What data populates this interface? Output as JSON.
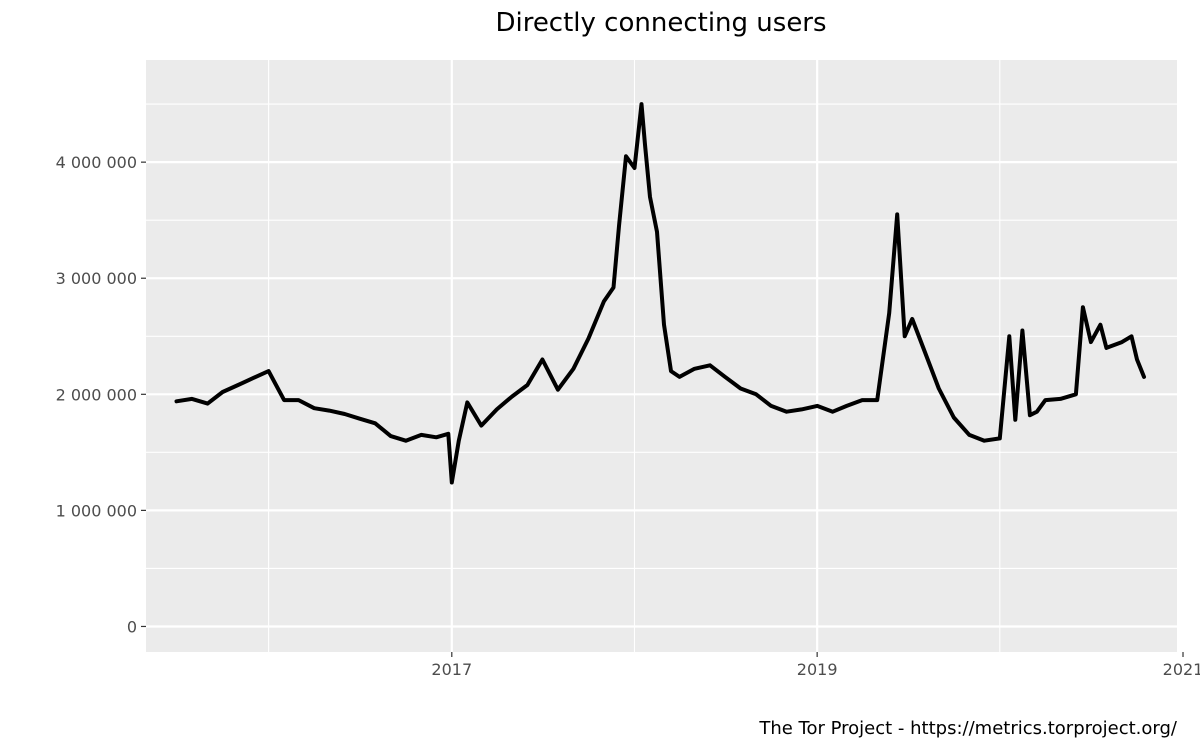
{
  "chart_data": {
    "type": "line",
    "title": "Directly connecting users",
    "xlabel": "",
    "ylabel": "",
    "caption": "The Tor Project - https://metrics.torproject.org/",
    "x_tick_labels": [
      "2017",
      "2019",
      "2021"
    ],
    "y_tick_labels": [
      "0",
      "1 000 000",
      "2 000 000",
      "3 000 000",
      "4 000 000"
    ],
    "y_ticks": [
      0,
      1000000,
      2000000,
      3000000,
      4000000
    ],
    "x_ticks": [
      "2017-01-01",
      "2019-01-01",
      "2021-01-01"
    ],
    "x_minor_ticks": [
      "2016-01-01",
      "2018-01-01",
      "2020-01-01"
    ],
    "xlim": [
      "2015-05-01",
      "2020-12-20"
    ],
    "ylim": [
      -220000,
      4880000
    ],
    "grid": true,
    "line_color": "#000000",
    "panel_color": "#ebebeb",
    "grid_color": "#ffffff",
    "series": [
      {
        "x": [
          "2015-07-01",
          "2015-08-01",
          "2015-09-01",
          "2015-10-01",
          "2015-11-01",
          "2015-12-01",
          "2016-01-01",
          "2016-02-01",
          "2016-03-01",
          "2016-04-01",
          "2016-05-01",
          "2016-06-01",
          "2016-07-01",
          "2016-08-01",
          "2016-09-01",
          "2016-10-01",
          "2016-11-01",
          "2016-12-01",
          "2016-12-25",
          "2017-01-01",
          "2017-01-15",
          "2017-02-01",
          "2017-03-01",
          "2017-04-01",
          "2017-05-01",
          "2017-06-01",
          "2017-07-01",
          "2017-08-01",
          "2017-09-01",
          "2017-10-01",
          "2017-11-01",
          "2017-11-20",
          "2017-12-01",
          "2017-12-15",
          "2018-01-01",
          "2018-01-15",
          "2018-01-22",
          "2018-02-01",
          "2018-02-15",
          "2018-03-01",
          "2018-03-15",
          "2018-04-01",
          "2018-05-01",
          "2018-06-01",
          "2018-07-01",
          "2018-08-01",
          "2018-09-01",
          "2018-10-01",
          "2018-11-01",
          "2018-12-01",
          "2019-01-01",
          "2019-02-01",
          "2019-03-01",
          "2019-04-01",
          "2019-05-01",
          "2019-05-25",
          "2019-06-10",
          "2019-06-25",
          "2019-07-10",
          "2019-08-01",
          "2019-09-01",
          "2019-10-01",
          "2019-11-01",
          "2019-12-01",
          "2020-01-01",
          "2020-01-20",
          "2020-02-01",
          "2020-02-15",
          "2020-03-01",
          "2020-03-15",
          "2020-04-01",
          "2020-05-01",
          "2020-06-01",
          "2020-06-15",
          "2020-07-01",
          "2020-07-20",
          "2020-08-01",
          "2020-09-01",
          "2020-09-20",
          "2020-10-01",
          "2020-10-15"
        ],
        "values": [
          1940000,
          1960000,
          1920000,
          2020000,
          2080000,
          2140000,
          2200000,
          1950000,
          1950000,
          1880000,
          1860000,
          1830000,
          1790000,
          1750000,
          1640000,
          1600000,
          1650000,
          1630000,
          1660000,
          1240000,
          1600000,
          1930000,
          1730000,
          1870000,
          1980000,
          2080000,
          2300000,
          2040000,
          2220000,
          2480000,
          2800000,
          2920000,
          3450000,
          4050000,
          3950000,
          4500000,
          4150000,
          3700000,
          3400000,
          2600000,
          2200000,
          2150000,
          2220000,
          2250000,
          2150000,
          2050000,
          2000000,
          1900000,
          1850000,
          1870000,
          1900000,
          1850000,
          1900000,
          1950000,
          1950000,
          2700000,
          3550000,
          2500000,
          2650000,
          2400000,
          2050000,
          1800000,
          1650000,
          1600000,
          1620000,
          2500000,
          1780000,
          2550000,
          1820000,
          1850000,
          1950000,
          1960000,
          2000000,
          2750000,
          2450000,
          2600000,
          2400000,
          2450000,
          2500000,
          2300000,
          2150000
        ]
      }
    ]
  }
}
